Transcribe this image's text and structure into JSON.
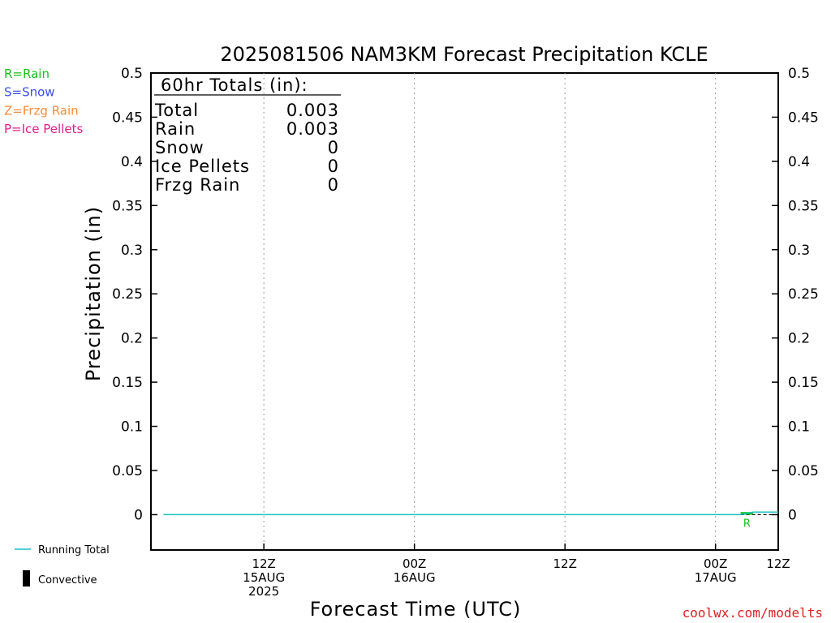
{
  "chart_data": {
    "type": "line",
    "title": "2025081506 NAM3KM Forecast Precipitation KCLE",
    "ylabel": "Precipitation (in)",
    "xlabel": "Forecast Time (UTC)",
    "ylim": [
      -0.04,
      0.5
    ],
    "yticks": [
      "0",
      "0.05",
      "0.1",
      "0.15",
      "0.2",
      "0.25",
      "0.3",
      "0.35",
      "0.4",
      "0.45",
      "0.5"
    ],
    "ytick_values": [
      0,
      0.05,
      0.1,
      0.15,
      0.2,
      0.25,
      0.3,
      0.35,
      0.4,
      0.45,
      0.5
    ],
    "xlim_hours": [
      -3,
      47
    ],
    "xticks": [
      {
        "hour": 6,
        "lines": [
          "12Z",
          "15AUG",
          "2025"
        ]
      },
      {
        "hour": 18,
        "lines": [
          "00Z",
          "16AUG"
        ]
      },
      {
        "hour": 30,
        "lines": [
          "12Z"
        ]
      },
      {
        "hour": 42,
        "lines": [
          "00Z",
          "17AUG"
        ]
      },
      {
        "hour": 54,
        "lines": [
          "12Z"
        ]
      }
    ],
    "grid": "vertical dotted",
    "series": [
      {
        "name": "Running Total",
        "color": "#19c3c8",
        "x_hours": [
          -2,
          44,
          45,
          47
        ],
        "y": [
          0,
          0,
          0.003,
          0.003
        ]
      }
    ],
    "precip_bars": [
      {
        "hour_start": 44,
        "hour_end": 45,
        "value": 0.003,
        "type": "R",
        "color": "#17c11a"
      }
    ],
    "precip_type_labels": [
      {
        "hour": 44.5,
        "text": "R",
        "color": "#17c11a"
      }
    ]
  },
  "totals_box": {
    "heading": "60hr Totals (in):",
    "rows": [
      {
        "label": "Total",
        "value": "0.003"
      },
      {
        "label": "Rain",
        "value": "0.003"
      },
      {
        "label": "Snow",
        "value": "0"
      },
      {
        "label": "Ice Pellets",
        "value": "0"
      },
      {
        "label": "Frzg Rain",
        "value": "0"
      }
    ]
  },
  "ptype_legend": [
    {
      "text": "R=Rain",
      "color": "#17c11a"
    },
    {
      "text": "S=Snow",
      "color": "#3a4ee8"
    },
    {
      "text": "Z=Frzg Rain",
      "color": "#f08c3c"
    },
    {
      "text": "P=Ice Pellets",
      "color": "#e0208c"
    }
  ],
  "bottom_legend": {
    "running_total": "Running Total",
    "running_total_color": "#19c3c8",
    "convective": "Convective"
  },
  "credit": "coolwx.com/modelts"
}
